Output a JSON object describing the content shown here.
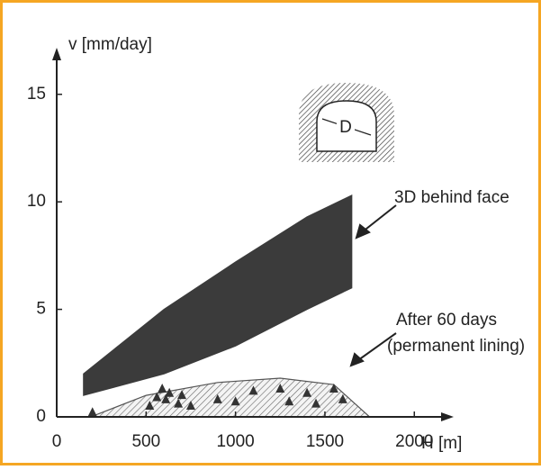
{
  "chart_data": {
    "type": "area",
    "x_label": "H [m]",
    "y_label": "v [mm/day]",
    "xlim": [
      0,
      2200
    ],
    "ylim": [
      0,
      17
    ],
    "xticks": [
      0,
      500,
      1000,
      1500,
      2000
    ],
    "yticks": [
      0,
      5,
      10,
      15
    ],
    "series": [
      {
        "name": "3D behind face",
        "color": "#2b2b2b",
        "hatched": false,
        "x": [
          150,
          600,
          1000,
          1400,
          1650
        ],
        "upper": [
          2,
          5,
          7.2,
          9.3,
          10.3
        ],
        "lower": [
          1,
          2,
          3.3,
          5,
          6
        ]
      },
      {
        "name": "After 60 days",
        "name2": "(permanent lining)",
        "color": "#555555",
        "hatched": true,
        "x": [
          190,
          500,
          900,
          1250,
          1550,
          1750
        ],
        "upper": [
          0,
          1,
          1.6,
          1.8,
          1.5,
          0
        ],
        "lower": [
          0,
          0,
          0,
          0,
          0,
          0
        ]
      }
    ],
    "points": {
      "color": "#333333",
      "x": [
        200,
        520,
        560,
        590,
        610,
        630,
        680,
        700,
        750,
        900,
        1000,
        1100,
        1250,
        1300,
        1400,
        1450,
        1550,
        1600
      ],
      "y": [
        0.2,
        0.5,
        0.9,
        1.3,
        0.8,
        1.1,
        0.6,
        1.0,
        0.5,
        0.8,
        0.7,
        1.2,
        1.3,
        0.7,
        1.1,
        0.6,
        1.3,
        0.8
      ]
    },
    "icon_label": "D"
  }
}
